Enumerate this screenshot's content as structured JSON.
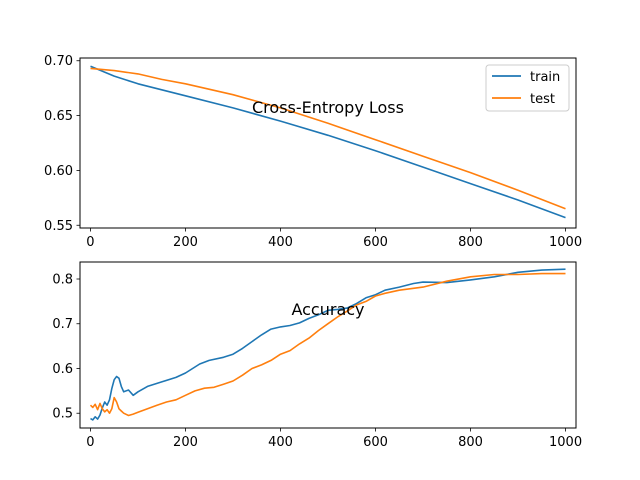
{
  "chart_data": [
    {
      "type": "line",
      "title": "Cross-Entropy Loss",
      "xlabel": "",
      "ylabel": "",
      "xlim": [
        -22,
        1022
      ],
      "ylim": [
        0.5475,
        0.7025
      ],
      "xticks": [
        0,
        200,
        400,
        600,
        800,
        1000
      ],
      "yticks": [
        0.55,
        0.6,
        0.65,
        0.7
      ],
      "ytick_labels": [
        "0.55",
        "0.60",
        "0.65",
        "0.70"
      ],
      "grid": false,
      "legend_position": "top-right",
      "series": [
        {
          "name": "train",
          "color": "#1f77b4",
          "x": [
            0,
            50,
            100,
            200,
            300,
            400,
            500,
            600,
            700,
            800,
            900,
            1000
          ],
          "y": [
            0.695,
            0.686,
            0.679,
            0.668,
            0.657,
            0.645,
            0.632,
            0.618,
            0.603,
            0.588,
            0.573,
            0.557
          ]
        },
        {
          "name": "test",
          "color": "#ff7f0e",
          "x": [
            0,
            50,
            100,
            150,
            200,
            300,
            400,
            500,
            600,
            700,
            800,
            900,
            1000
          ],
          "y": [
            0.693,
            0.691,
            0.688,
            0.683,
            0.679,
            0.669,
            0.657,
            0.643,
            0.628,
            0.613,
            0.598,
            0.582,
            0.565
          ]
        }
      ]
    },
    {
      "type": "line",
      "title": "Accuracy",
      "xlabel": "",
      "ylabel": "",
      "xlim": [
        -22,
        1022
      ],
      "ylim": [
        0.467,
        0.838
      ],
      "xticks": [
        0,
        200,
        400,
        600,
        800,
        1000
      ],
      "yticks": [
        0.5,
        0.6,
        0.7,
        0.8
      ],
      "ytick_labels": [
        "0.5",
        "0.6",
        "0.7",
        "0.8"
      ],
      "grid": false,
      "series": [
        {
          "name": "train",
          "color": "#1f77b4",
          "x": [
            0,
            5,
            10,
            15,
            20,
            25,
            30,
            35,
            40,
            45,
            50,
            55,
            60,
            65,
            70,
            80,
            90,
            100,
            120,
            150,
            180,
            200,
            230,
            250,
            280,
            300,
            320,
            340,
            360,
            380,
            400,
            420,
            440,
            460,
            480,
            500,
            520,
            540,
            560,
            580,
            600,
            620,
            650,
            680,
            700,
            750,
            800,
            850,
            900,
            950,
            1000
          ],
          "y": [
            0.488,
            0.485,
            0.492,
            0.487,
            0.496,
            0.512,
            0.525,
            0.518,
            0.53,
            0.555,
            0.575,
            0.582,
            0.578,
            0.56,
            0.548,
            0.552,
            0.54,
            0.548,
            0.56,
            0.57,
            0.58,
            0.59,
            0.61,
            0.618,
            0.625,
            0.632,
            0.645,
            0.66,
            0.675,
            0.688,
            0.693,
            0.696,
            0.702,
            0.712,
            0.72,
            0.73,
            0.732,
            0.735,
            0.745,
            0.758,
            0.765,
            0.775,
            0.782,
            0.79,
            0.793,
            0.792,
            0.798,
            0.805,
            0.815,
            0.82,
            0.822
          ]
        },
        {
          "name": "test",
          "color": "#ff7f0e",
          "x": [
            0,
            5,
            10,
            15,
            20,
            25,
            30,
            35,
            40,
            45,
            50,
            55,
            60,
            65,
            70,
            80,
            90,
            100,
            120,
            140,
            160,
            180,
            200,
            220,
            240,
            260,
            280,
            300,
            320,
            340,
            360,
            380,
            400,
            420,
            440,
            460,
            480,
            500,
            520,
            540,
            560,
            580,
            600,
            620,
            650,
            700,
            750,
            800,
            850,
            900,
            950,
            1000
          ],
          "y": [
            0.518,
            0.513,
            0.52,
            0.508,
            0.522,
            0.51,
            0.503,
            0.508,
            0.5,
            0.51,
            0.535,
            0.525,
            0.51,
            0.505,
            0.5,
            0.495,
            0.498,
            0.502,
            0.51,
            0.518,
            0.525,
            0.53,
            0.54,
            0.55,
            0.556,
            0.558,
            0.565,
            0.572,
            0.585,
            0.6,
            0.608,
            0.618,
            0.632,
            0.64,
            0.655,
            0.668,
            0.685,
            0.7,
            0.715,
            0.728,
            0.742,
            0.75,
            0.762,
            0.768,
            0.775,
            0.782,
            0.795,
            0.805,
            0.81,
            0.81,
            0.812,
            0.812
          ]
        }
      ]
    }
  ]
}
